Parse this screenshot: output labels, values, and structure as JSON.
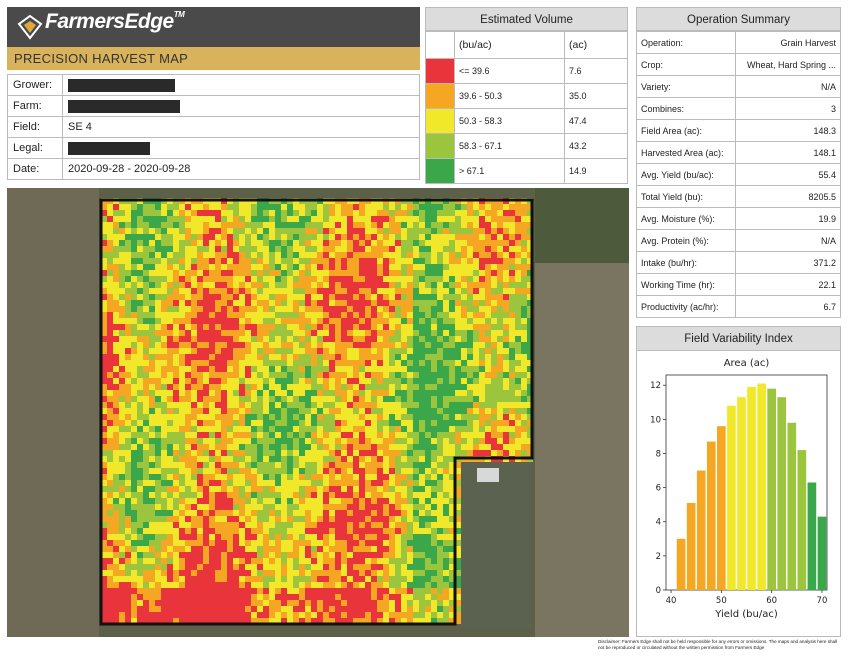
{
  "header": {
    "brand": "FarmersEdge",
    "tm": "TM",
    "report_title": "PRECISION HARVEST MAP"
  },
  "info": [
    {
      "label": "Grower:",
      "value": "",
      "redacted": true
    },
    {
      "label": "Farm:",
      "value": "",
      "redacted": true
    },
    {
      "label": "Field:",
      "value": "SE 4",
      "redacted": false
    },
    {
      "label": "Legal:",
      "value": "",
      "redacted": true
    },
    {
      "label": "Date:",
      "value": "2020-09-28 - 2020-09-28",
      "redacted": false
    }
  ],
  "estimated_volume": {
    "title": "Estimated Volume",
    "col_range": "(bu/ac)",
    "col_area": "(ac)",
    "rows": [
      {
        "range": "<= 39.6",
        "area": "7.6",
        "color": "#e8343a"
      },
      {
        "range": "39.6 - 50.3",
        "area": "35.0",
        "color": "#f5a623"
      },
      {
        "range": "50.3 - 58.3",
        "area": "47.4",
        "color": "#f2e82a"
      },
      {
        "range": "58.3 - 67.1",
        "area": "43.2",
        "color": "#9bc53d"
      },
      {
        "range": "> 67.1",
        "area": "14.9",
        "color": "#3aa84a"
      }
    ]
  },
  "operation_summary": {
    "title": "Operation Summary",
    "rows": [
      {
        "label": "Operation:",
        "value": "Grain Harvest"
      },
      {
        "label": "Crop:",
        "value": "Wheat, Hard Spring ..."
      },
      {
        "label": "Variety:",
        "value": "N/A"
      },
      {
        "label": "Combines:",
        "value": "3"
      },
      {
        "label": "Field Area (ac):",
        "value": "148.3"
      },
      {
        "label": "Harvested Area (ac):",
        "value": "148.1"
      },
      {
        "label": "Avg. Yield (bu/ac):",
        "value": "55.4"
      },
      {
        "label": "Total Yield (bu):",
        "value": "8205.5"
      },
      {
        "label": "Avg. Moisture (%):",
        "value": "19.9"
      },
      {
        "label": "Avg. Protein (%):",
        "value": "N/A"
      },
      {
        "label": "Intake (bu/hr):",
        "value": "371.2"
      },
      {
        "label": "Working Time (hr):",
        "value": "22.1"
      },
      {
        "label": "Productivity (ac/hr):",
        "value": "6.7"
      }
    ]
  },
  "variability": {
    "title": "Field Variability Index"
  },
  "chart_data": {
    "type": "bar",
    "title": "Area (ac)",
    "xlabel": "Yield (bu/ac)",
    "ylabel": "",
    "xlim": [
      39,
      71
    ],
    "ylim": [
      0,
      12.6
    ],
    "xticks": [
      40,
      50,
      60,
      70
    ],
    "yticks": [
      0,
      2,
      4,
      6,
      8,
      10,
      12
    ],
    "x": [
      42,
      44,
      46,
      48,
      50,
      52,
      54,
      56,
      58,
      60,
      62,
      64,
      66,
      68,
      70
    ],
    "values": [
      3.0,
      5.1,
      7.0,
      8.7,
      9.6,
      10.8,
      11.3,
      11.9,
      12.1,
      11.8,
      11.3,
      9.8,
      8.2,
      6.3,
      4.3
    ],
    "colors": [
      "#f5a623",
      "#f5a623",
      "#f5a623",
      "#f5a623",
      "#f5a623",
      "#f2e82a",
      "#f2e82a",
      "#f2e82a",
      "#f2e82a",
      "#9bc53d",
      "#9bc53d",
      "#9bc53d",
      "#9bc53d",
      "#3aa84a",
      "#3aa84a"
    ],
    "grid": false
  },
  "disclaimer": "Disclaimer: Farmers Edge shall not be held responsible for any errors or omissions. The maps and analysis here shall not be reproduced or circulated without the written permission from Farmers Edge",
  "palette": {
    "low": "#e8343a",
    "mid_low": "#f5a623",
    "mid": "#f2e82a",
    "mid_high": "#9bc53d",
    "high": "#3aa84a"
  }
}
